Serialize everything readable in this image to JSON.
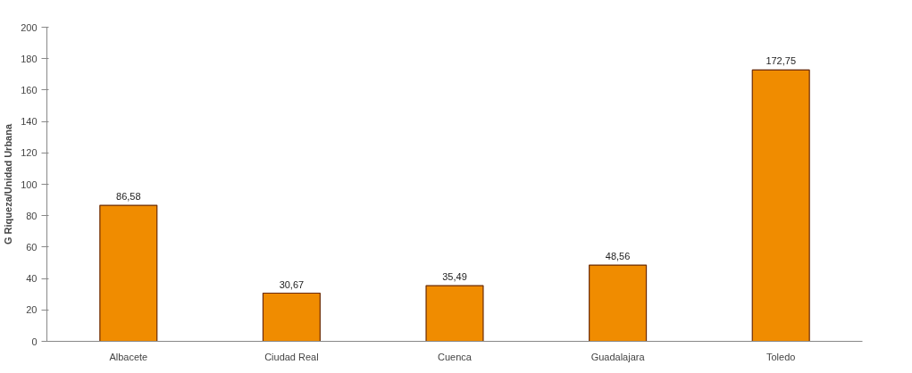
{
  "chart_data": {
    "type": "bar",
    "ylabel": "G Riqueza/Unidad Urbana",
    "categories": [
      "Albacete",
      "Ciudad Real",
      "Cuenca",
      "Guadalajara",
      "Toledo"
    ],
    "values": [
      86.58,
      30.67,
      35.49,
      48.56,
      172.75
    ],
    "value_labels": [
      "86,58",
      "30,67",
      "35,49",
      "48,56",
      "172,75"
    ],
    "color": "#f08c00",
    "ylim": [
      0,
      200
    ],
    "yticks": [
      0,
      20,
      40,
      60,
      80,
      100,
      120,
      140,
      160,
      180,
      200
    ],
    "grid": false
  }
}
